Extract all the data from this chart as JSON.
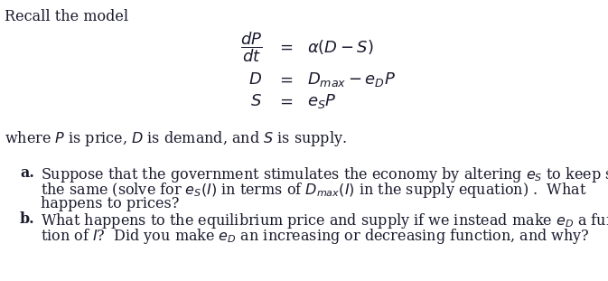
{
  "bg_color": "#ffffff",
  "text_color": "#1a1a2e",
  "title": "Recall the model",
  "eq_row1_lhs": "$\\dfrac{dP}{dt}$",
  "eq_row1_eq": "$=$",
  "eq_row1_rhs": "$\\alpha(D - S)$",
  "eq_row2_lhs": "$D$",
  "eq_row2_eq": "$=$",
  "eq_row2_rhs": "$D_{max} - e_D P$",
  "eq_row3_lhs": "$S$",
  "eq_row3_eq": "$=$",
  "eq_row3_rhs": "$e_S P$",
  "where_line": "where $P$ is price, $D$ is demand, and $S$ is supply.",
  "a_label": "a.",
  "a_line1": "Suppose that the government stimulates the economy by altering $e_S$ to keep supply",
  "a_line2": "the same (solve for $e_S(I)$ in terms of $D_{max}(I)$ in the supply equation) .  What",
  "a_line3": "happens to prices?",
  "b_label": "b.",
  "b_line1": "What happens to the equilibrium price and supply if we instead make $e_D$ a func-",
  "b_line2": "tion of $I$?  Did you make $e_D$ an increasing or decreasing function, and why?",
  "fs_title": 11.5,
  "fs_body": 11.5,
  "fs_math": 13,
  "fig_w": 6.73,
  "fig_h": 3.11,
  "dpi": 100
}
